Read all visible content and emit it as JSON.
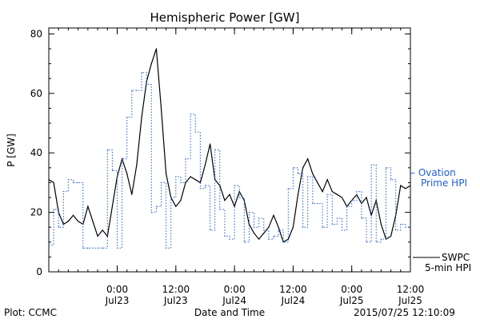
{
  "chart_data": {
    "type": "line",
    "title": "Hemispheric Power [GW]",
    "ylabel": "P [GW]",
    "xlabel": "Date and Time",
    "ylim": [
      0,
      82
    ],
    "yticks": [
      0,
      20,
      40,
      60,
      80
    ],
    "xlim": [
      "2015-07-22 10:00",
      "2015-07-25 12:00"
    ],
    "xticks": [
      {
        "x": "2015-07-23 00:00",
        "line1": "0:00",
        "line2": "Jul23"
      },
      {
        "x": "2015-07-23 12:00",
        "line1": "12:00",
        "line2": "Jul23"
      },
      {
        "x": "2015-07-24 00:00",
        "line1": "0:00",
        "line2": "Jul24"
      },
      {
        "x": "2015-07-24 12:00",
        "line1": "12:00",
        "line2": "Jul24"
      },
      {
        "x": "2015-07-25 00:00",
        "line1": "0:00",
        "line2": "Jul25"
      },
      {
        "x": "2015-07-25 12:00",
        "line1": "12:00",
        "line2": "Jul25"
      }
    ],
    "series": [
      {
        "name": "SWPC 5-min HPI",
        "legend_line1": "SWPC",
        "legend_line2": "5-min HPI",
        "color": "#000000",
        "style": "solid",
        "x": [
          "2015-07-22 10:00",
          "2015-07-22 11:00",
          "2015-07-22 12:00",
          "2015-07-22 13:00",
          "2015-07-22 14:00",
          "2015-07-22 15:00",
          "2015-07-22 16:00",
          "2015-07-22 17:00",
          "2015-07-22 18:00",
          "2015-07-22 19:00",
          "2015-07-22 20:00",
          "2015-07-22 21:00",
          "2015-07-22 22:00",
          "2015-07-22 23:00",
          "2015-07-23 00:00",
          "2015-07-23 01:00",
          "2015-07-23 02:00",
          "2015-07-23 03:00",
          "2015-07-23 04:00",
          "2015-07-23 05:00",
          "2015-07-23 06:00",
          "2015-07-23 07:00",
          "2015-07-23 08:00",
          "2015-07-23 09:00",
          "2015-07-23 10:00",
          "2015-07-23 11:00",
          "2015-07-23 12:00",
          "2015-07-23 13:00",
          "2015-07-23 14:00",
          "2015-07-23 15:00",
          "2015-07-23 16:00",
          "2015-07-23 17:00",
          "2015-07-23 18:00",
          "2015-07-23 19:00",
          "2015-07-23 20:00",
          "2015-07-23 21:00",
          "2015-07-23 22:00",
          "2015-07-23 23:00",
          "2015-07-24 00:00",
          "2015-07-24 01:00",
          "2015-07-24 02:00",
          "2015-07-24 03:00",
          "2015-07-24 04:00",
          "2015-07-24 05:00",
          "2015-07-24 06:00",
          "2015-07-24 07:00",
          "2015-07-24 08:00",
          "2015-07-24 09:00",
          "2015-07-24 10:00",
          "2015-07-24 11:00",
          "2015-07-24 12:00",
          "2015-07-24 13:00",
          "2015-07-24 14:00",
          "2015-07-24 15:00",
          "2015-07-24 16:00",
          "2015-07-24 17:00",
          "2015-07-24 18:00",
          "2015-07-24 19:00",
          "2015-07-24 20:00",
          "2015-07-24 21:00",
          "2015-07-24 22:00",
          "2015-07-24 23:00",
          "2015-07-25 00:00",
          "2015-07-25 01:00",
          "2015-07-25 02:00",
          "2015-07-25 03:00",
          "2015-07-25 04:00",
          "2015-07-25 05:00",
          "2015-07-25 06:00",
          "2015-07-25 07:00",
          "2015-07-25 08:00",
          "2015-07-25 09:00",
          "2015-07-25 10:00",
          "2015-07-25 11:00",
          "2015-07-25 12:00"
        ],
        "values": [
          31,
          30,
          20,
          16,
          17,
          19,
          17,
          16,
          22,
          17,
          12,
          14,
          12,
          22,
          32,
          38,
          33,
          26,
          36,
          52,
          64,
          70,
          75,
          55,
          33,
          25,
          22,
          24,
          30,
          32,
          31,
          30,
          36,
          43,
          31,
          29,
          24,
          26,
          22,
          27,
          24,
          16,
          13,
          11,
          13,
          15,
          19,
          15,
          10,
          11,
          15,
          26,
          35,
          38,
          33,
          30,
          27,
          31,
          27,
          26,
          25,
          22,
          24,
          26,
          23,
          25,
          19,
          24,
          16,
          11,
          12,
          19,
          29,
          28,
          29
        ]
      },
      {
        "name": "Ovation Prime HPI",
        "legend_line1": "– Ovation",
        "legend_line2": "Prime HPI",
        "color": "#1f5fd1",
        "style": "dotted-step",
        "x": [
          "2015-07-22 10:00",
          "2015-07-22 11:00",
          "2015-07-22 12:00",
          "2015-07-22 13:00",
          "2015-07-22 14:00",
          "2015-07-22 15:00",
          "2015-07-22 16:00",
          "2015-07-22 17:00",
          "2015-07-22 18:00",
          "2015-07-22 19:00",
          "2015-07-22 20:00",
          "2015-07-22 21:00",
          "2015-07-22 22:00",
          "2015-07-22 23:00",
          "2015-07-23 00:00",
          "2015-07-23 01:00",
          "2015-07-23 02:00",
          "2015-07-23 03:00",
          "2015-07-23 04:00",
          "2015-07-23 05:00",
          "2015-07-23 06:00",
          "2015-07-23 07:00",
          "2015-07-23 08:00",
          "2015-07-23 09:00",
          "2015-07-23 10:00",
          "2015-07-23 11:00",
          "2015-07-23 12:00",
          "2015-07-23 13:00",
          "2015-07-23 14:00",
          "2015-07-23 15:00",
          "2015-07-23 16:00",
          "2015-07-23 17:00",
          "2015-07-23 18:00",
          "2015-07-23 19:00",
          "2015-07-23 20:00",
          "2015-07-23 21:00",
          "2015-07-23 22:00",
          "2015-07-23 23:00",
          "2015-07-24 00:00",
          "2015-07-24 01:00",
          "2015-07-24 02:00",
          "2015-07-24 03:00",
          "2015-07-24 04:00",
          "2015-07-24 05:00",
          "2015-07-24 06:00",
          "2015-07-24 07:00",
          "2015-07-24 08:00",
          "2015-07-24 09:00",
          "2015-07-24 10:00",
          "2015-07-24 11:00",
          "2015-07-24 12:00",
          "2015-07-24 13:00",
          "2015-07-24 14:00",
          "2015-07-24 15:00",
          "2015-07-24 16:00",
          "2015-07-24 17:00",
          "2015-07-24 18:00",
          "2015-07-24 19:00",
          "2015-07-24 20:00",
          "2015-07-24 21:00",
          "2015-07-24 22:00",
          "2015-07-24 23:00",
          "2015-07-25 00:00",
          "2015-07-25 01:00",
          "2015-07-25 02:00",
          "2015-07-25 03:00",
          "2015-07-25 04:00",
          "2015-07-25 05:00",
          "2015-07-25 06:00",
          "2015-07-25 07:00",
          "2015-07-25 08:00",
          "2015-07-25 09:00",
          "2015-07-25 10:00",
          "2015-07-25 11:00",
          "2015-07-25 12:00"
        ],
        "values": [
          9,
          21,
          15,
          27,
          31,
          30,
          30,
          8,
          8,
          8,
          8,
          8,
          41,
          34,
          8,
          38,
          52,
          61,
          61,
          67,
          63,
          20,
          22,
          30,
          8,
          25,
          32,
          30,
          38,
          53,
          47,
          28,
          29,
          14,
          41,
          21,
          12,
          11,
          29,
          25,
          10,
          20,
          15,
          18,
          14,
          11,
          12,
          14,
          10,
          28,
          35,
          33,
          15,
          32,
          23,
          23,
          15,
          26,
          16,
          18,
          14,
          22,
          24,
          27,
          18,
          10,
          36,
          10,
          11,
          35,
          31,
          14,
          16,
          15,
          15
        ]
      }
    ],
    "grid": false,
    "legend_position": "right"
  },
  "footer": {
    "left": "Plot: CCMC",
    "right": "2015/07/25 12:10:09"
  }
}
